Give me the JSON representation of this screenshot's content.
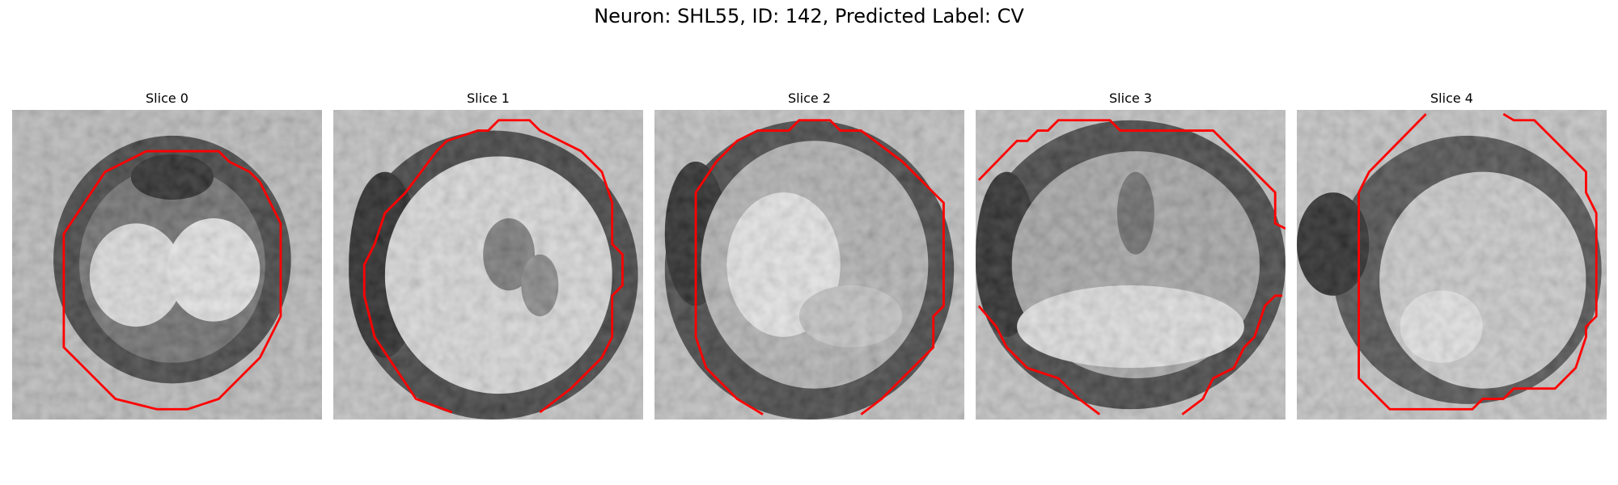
{
  "figure": {
    "title": "Neuron: SHL55, ID: 142, Predicted Label: CV"
  },
  "slices": [
    {
      "title": "Slice 0"
    },
    {
      "title": "Slice 1"
    },
    {
      "title": "Slice 2"
    },
    {
      "title": "Slice 3"
    },
    {
      "title": "Slice 4"
    }
  ],
  "colors": {
    "contour": "#ff0000",
    "colormap": "grayscale"
  }
}
